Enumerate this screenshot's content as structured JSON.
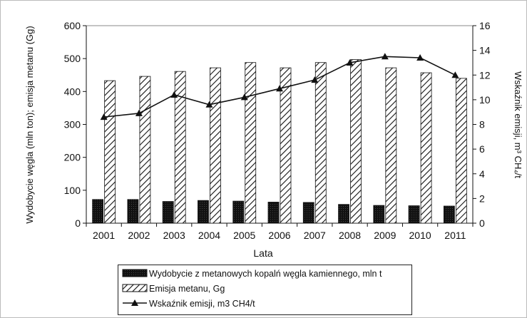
{
  "chart_data": {
    "type": "bar",
    "xlabel": "Lata",
    "ylabel_left": "Wydobycie węgla (mln ton); emisja metanu (Gg)",
    "ylabel_right": "Wskaźnik emisji, m³ CH₄/t",
    "categories": [
      "2001",
      "2002",
      "2003",
      "2004",
      "2005",
      "2006",
      "2007",
      "2008",
      "2009",
      "2010",
      "2011"
    ],
    "y_left": {
      "min": 0,
      "max": 600,
      "ticks": [
        "0",
        "100",
        "200",
        "300",
        "400",
        "500",
        "600"
      ]
    },
    "y_right": {
      "min": 0,
      "max": 16,
      "ticks": [
        "0",
        "2",
        "4",
        "6",
        "8",
        "10",
        "12",
        "14",
        "16"
      ]
    },
    "series": [
      {
        "name": "Wydobycie z metanowych kopalń węgla kamiennego, mln t",
        "type": "bar",
        "axis": "left",
        "color": "#111111",
        "values": [
          72,
          72,
          66,
          69,
          67,
          64,
          63,
          57,
          54,
          53,
          52
        ]
      },
      {
        "name": "Emisja metanu, Gg",
        "type": "bar",
        "axis": "left",
        "pattern": "diagonal-hatch",
        "values": [
          433,
          446,
          461,
          472,
          488,
          472,
          488,
          497,
          472,
          457,
          440
        ]
      },
      {
        "name": "Wskaźnik emisji,  m3 CH4/t",
        "type": "line",
        "axis": "right",
        "marker": "triangle",
        "color": "#111111",
        "values": [
          8.6,
          8.9,
          10.4,
          9.6,
          10.2,
          10.9,
          11.6,
          13.0,
          13.5,
          13.4,
          12.0
        ]
      }
    ],
    "legend_position": "bottom",
    "grid": false
  }
}
